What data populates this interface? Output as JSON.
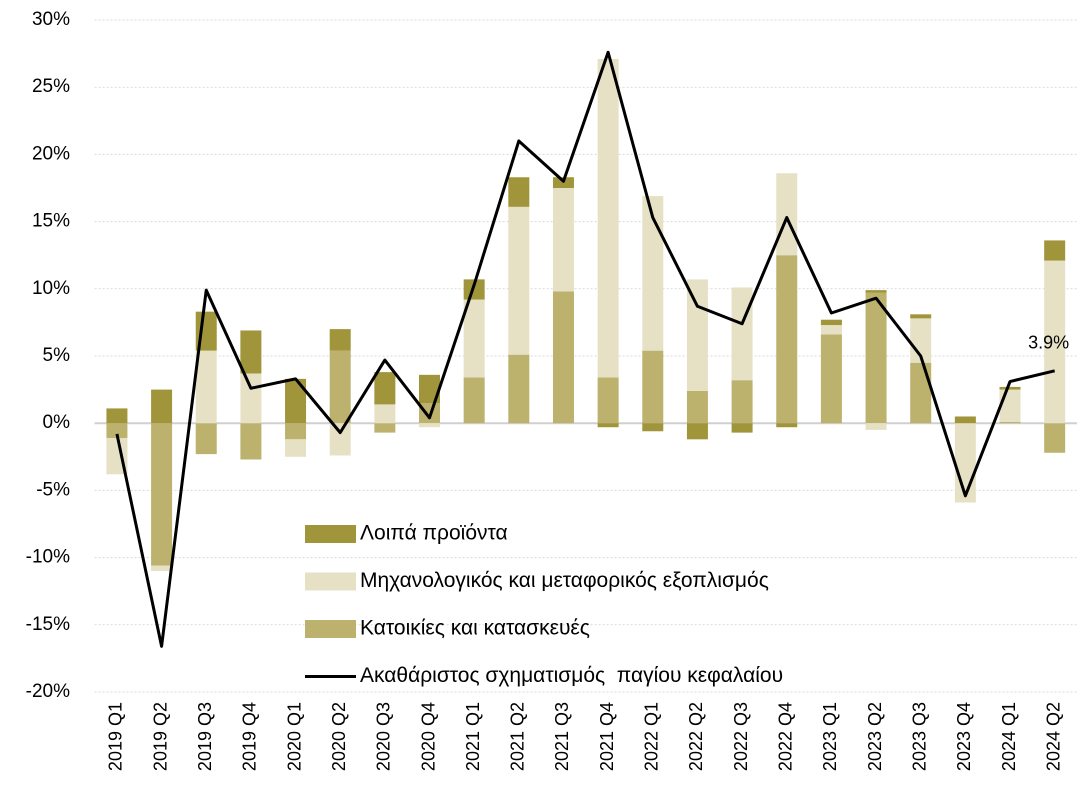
{
  "chart_data": {
    "type": "bar-line",
    "categories": [
      "2019 Q1",
      "2019 Q2",
      "2019 Q3",
      "2019 Q4",
      "2020 Q1",
      "2020 Q2",
      "2020 Q3",
      "2020 Q4",
      "2021 Q1",
      "2021 Q2",
      "2021 Q3",
      "2021 Q4",
      "2022 Q1",
      "2022 Q2",
      "2022 Q3",
      "2022 Q4",
      "2023 Q1",
      "2023 Q2",
      "2023 Q3",
      "2023 Q4",
      "2024 Q1",
      "2024 Q2"
    ],
    "series": [
      {
        "name": "Λοιπά προϊόντα",
        "type": "bar",
        "color": "#a0953a",
        "values": [
          1.1,
          2.5,
          2.9,
          3.2,
          3.3,
          1.6,
          2.4,
          2.1,
          1.5,
          2.2,
          0.8,
          -0.3,
          -0.6,
          -1.2,
          -0.7,
          -0.3,
          0.4,
          0.2,
          0.3,
          0.5,
          0.2,
          1.5
        ]
      },
      {
        "name": "Μηχανολογικός και μεταφορικός εξοπλισμός",
        "type": "bar",
        "color": "#e6e1c5",
        "values": [
          -2.7,
          -0.4,
          5.4,
          3.7,
          -1.3,
          -2.4,
          1.4,
          -0.3,
          5.8,
          11.0,
          7.7,
          23.7,
          11.5,
          8.3,
          6.9,
          6.1,
          0.7,
          -0.5,
          3.3,
          -5.9,
          2.4,
          12.1
        ]
      },
      {
        "name": "Κατοικίες και κατασκευές",
        "type": "bar",
        "color": "#bcb26e",
        "values": [
          -1.1,
          -10.6,
          -2.3,
          -2.7,
          -1.2,
          5.4,
          -0.7,
          1.5,
          3.4,
          5.1,
          9.8,
          3.4,
          5.4,
          2.4,
          3.2,
          12.5,
          6.6,
          9.7,
          4.5,
          0,
          0.1,
          -2.2
        ]
      },
      {
        "name": "Ακαθάριστος σχηματισμός  παγίου κεφαλαίου",
        "type": "line",
        "color": "#000000",
        "values": [
          -0.8,
          -16.6,
          9.9,
          2.6,
          3.3,
          -0.7,
          4.7,
          0.4,
          10.3,
          21.0,
          18.0,
          27.6,
          15.3,
          8.7,
          7.4,
          15.3,
          8.2,
          9.3,
          5.0,
          -5.4,
          3.1,
          3.9
        ],
        "value_labels": [
          null,
          null,
          null,
          null,
          null,
          null,
          null,
          null,
          null,
          null,
          null,
          null,
          null,
          null,
          null,
          null,
          null,
          null,
          null,
          null,
          null,
          "3.9%"
        ]
      }
    ],
    "ylim": [
      -20,
      30
    ],
    "yticks": [
      {
        "value": -20,
        "label": "-20%"
      },
      {
        "value": -15,
        "label": "-15%"
      },
      {
        "value": -10,
        "label": "-10%"
      },
      {
        "value": -5,
        "label": "-5%"
      },
      {
        "value": 0,
        "label": "0%"
      },
      {
        "value": 5,
        "label": "5%"
      },
      {
        "value": 10,
        "label": "10%"
      },
      {
        "value": 15,
        "label": "15%"
      },
      {
        "value": 20,
        "label": "20%"
      },
      {
        "value": 25,
        "label": "25%"
      },
      {
        "value": 30,
        "label": "30%"
      }
    ],
    "grid": true,
    "legend": "bottom-center"
  }
}
